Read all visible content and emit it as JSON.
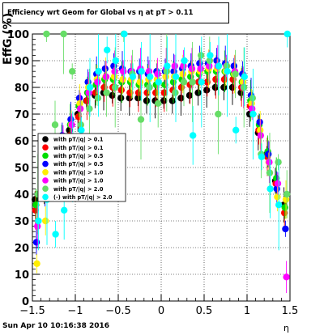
{
  "title": "Efficiency wrt Geom for Global vs   η at pT > 0.11",
  "timestamp": "Sun Apr 10 10:16:38 2016",
  "chart_data": {
    "type": "scatter",
    "title": "Efficiency wrt Geom for Global vs   η at pT > 0.11",
    "xlabel": "η",
    "ylabel": "EffG (%)",
    "xlim": [
      -1.5,
      1.5
    ],
    "ylim": [
      0,
      100
    ],
    "xticks": [
      "−1.5",
      "−1",
      "−0.5",
      "0",
      "0.5",
      "1",
      "1.5"
    ],
    "yticks": [
      "0",
      "10",
      "20",
      "30",
      "40",
      "50",
      "60",
      "70",
      "80",
      "90",
      "100"
    ],
    "grid": true,
    "legend_position": "middle-left",
    "series": [
      {
        "name": "with pT/|q| > 0.1",
        "color": "#000000",
        "x": [
          -1.45,
          -1.35,
          -1.25,
          -1.15,
          -1.05,
          -0.95,
          -0.85,
          -0.75,
          -0.65,
          -0.55,
          -0.45,
          -0.35,
          -0.25,
          -0.15,
          -0.05,
          0.05,
          0.15,
          0.25,
          0.35,
          0.45,
          0.55,
          0.65,
          0.75,
          0.85,
          0.95,
          1.05,
          1.15,
          1.25,
          1.35,
          1.45
        ],
        "y": [
          38,
          45,
          52,
          58,
          64,
          70,
          75,
          77,
          78,
          77,
          76,
          76,
          76,
          75,
          75,
          75,
          75,
          76,
          77,
          78,
          79,
          80,
          80,
          80,
          78,
          70,
          63,
          55,
          45,
          36
        ]
      },
      {
        "name": "with pT/|q| > 0.1",
        "color": "#ff0000",
        "x": [
          -1.45,
          -1.35,
          -1.25,
          -1.15,
          -1.05,
          -0.95,
          -0.85,
          -0.75,
          -0.65,
          -0.55,
          -0.45,
          -0.35,
          -0.25,
          -0.15,
          -0.05,
          0.05,
          0.15,
          0.25,
          0.35,
          0.45,
          0.55,
          0.65,
          0.75,
          0.85,
          0.95,
          1.05,
          1.15,
          1.25,
          1.35,
          1.45
        ],
        "y": [
          34,
          40,
          48,
          56,
          62,
          69,
          75,
          78,
          80,
          80,
          79,
          78,
          78,
          78,
          78,
          78,
          79,
          80,
          81,
          82,
          82,
          83,
          83,
          83,
          80,
          73,
          64,
          54,
          44,
          33
        ]
      },
      {
        "name": "with pT/|q| > 0.5",
        "color": "#00dd00",
        "x": [
          -1.45,
          -1.35,
          -1.25,
          -1.15,
          -1.05,
          -0.95,
          -0.85,
          -0.75,
          -0.65,
          -0.55,
          -0.45,
          -0.35,
          -0.25,
          -0.15,
          -0.05,
          0.05,
          0.15,
          0.25,
          0.35,
          0.45,
          0.55,
          0.65,
          0.75,
          0.85,
          0.95,
          1.05,
          1.15,
          1.25,
          1.35,
          1.45
        ],
        "y": [
          36,
          44,
          52,
          60,
          66,
          73,
          78,
          81,
          83,
          83,
          82,
          82,
          81,
          81,
          81,
          81,
          82,
          83,
          84,
          85,
          86,
          86,
          86,
          85,
          82,
          75,
          66,
          56,
          46,
          35
        ]
      },
      {
        "name": "with pT/|q| > 0.5",
        "color": "#0000ff",
        "x": [
          -1.45,
          -1.35,
          -1.25,
          -1.15,
          -1.05,
          -0.95,
          -0.85,
          -0.75,
          -0.65,
          -0.55,
          -0.45,
          -0.35,
          -0.25,
          -0.15,
          -0.05,
          0.05,
          0.15,
          0.25,
          0.35,
          0.45,
          0.55,
          0.65,
          0.75,
          0.85,
          0.95,
          1.05,
          1.15,
          1.25,
          1.35,
          1.45
        ],
        "y": [
          22,
          42,
          52,
          62,
          68,
          76,
          82,
          85,
          87,
          88,
          87,
          86,
          86,
          85,
          86,
          86,
          86,
          87,
          88,
          89,
          89,
          90,
          89,
          88,
          85,
          77,
          67,
          55,
          42,
          27
        ]
      },
      {
        "name": "with pT/|q| > 1.0",
        "color": "#ffee00",
        "x": [
          -1.45,
          -1.35,
          -1.25,
          -1.15,
          -1.05,
          -0.95,
          -0.85,
          -0.75,
          -0.65,
          -0.55,
          -0.45,
          -0.35,
          -0.25,
          -0.15,
          -0.05,
          0.05,
          0.15,
          0.25,
          0.35,
          0.45,
          0.55,
          0.65,
          0.75,
          0.85,
          0.95,
          1.05,
          1.15,
          1.25,
          1.35,
          1.45
        ],
        "y": [
          14,
          30,
          46,
          58,
          66,
          74,
          80,
          83,
          84,
          84,
          83,
          83,
          82,
          83,
          83,
          84,
          84,
          85,
          86,
          86,
          87,
          87,
          86,
          85,
          82,
          74,
          64,
          52,
          39,
          38
        ]
      },
      {
        "name": "with pT/|q| > 1.0",
        "color": "#ff00ff",
        "x": [
          -1.45,
          -1.35,
          -1.25,
          -1.15,
          -1.05,
          -0.95,
          -0.85,
          -0.75,
          -0.65,
          -0.55,
          -0.45,
          -0.35,
          -0.25,
          -0.15,
          -0.05,
          0.05,
          0.15,
          0.25,
          0.35,
          0.45,
          0.55,
          0.65,
          0.75,
          0.85,
          0.95,
          1.05,
          1.15,
          1.25,
          1.35,
          1.45
        ],
        "y": [
          28,
          42,
          50,
          58,
          66,
          72,
          78,
          82,
          84,
          86,
          86,
          86,
          87,
          86,
          85,
          87,
          88,
          88,
          87,
          87,
          88,
          88,
          88,
          86,
          80,
          72,
          62,
          52,
          44,
          9
        ]
      },
      {
        "name": "with pT/|q| > 2.0",
        "color": "#66dd66",
        "x": [
          -1.45,
          -1.35,
          -1.25,
          -1.15,
          -1.05,
          -0.95,
          -0.85,
          -0.75,
          -0.65,
          -0.55,
          -0.45,
          -0.35,
          -0.25,
          -0.15,
          -0.05,
          0.05,
          0.15,
          0.25,
          0.35,
          0.45,
          0.55,
          0.65,
          0.75,
          0.85,
          0.95,
          1.05,
          1.15,
          1.25,
          1.35,
          1.45
        ],
        "y": [
          40,
          100,
          66,
          100,
          86,
          66,
          72,
          76,
          78,
          80,
          100,
          85,
          68,
          80,
          74,
          86,
          78,
          82,
          82,
          92,
          90,
          70,
          88,
          85,
          80,
          76,
          55,
          48,
          52,
          40
        ]
      },
      {
        "name": "(-) with pT/|q| > 2.0",
        "color": "#00ffff",
        "x": [
          -1.45,
          -1.35,
          -1.25,
          -1.15,
          -1.05,
          -0.95,
          -0.85,
          -0.75,
          -0.65,
          -0.55,
          -0.45,
          -0.35,
          -0.25,
          -0.15,
          -0.05,
          0.05,
          0.15,
          0.25,
          0.35,
          0.45,
          0.55,
          0.65,
          0.75,
          0.85,
          0.95,
          1.05,
          1.15,
          1.25,
          1.35,
          1.45
        ],
        "y": [
          30,
          38,
          25,
          34,
          54,
          64,
          80,
          86,
          94,
          90,
          100,
          84,
          86,
          84,
          82,
          88,
          84,
          90,
          62,
          82,
          92,
          88,
          86,
          64,
          84,
          70,
          54,
          42,
          36,
          100
        ]
      }
    ],
    "legend": [
      {
        "label": "with pT/|q| > 0.1",
        "color": "#000000"
      },
      {
        "label": "with pT/|q| > 0.1",
        "color": "#ff0000"
      },
      {
        "label": "with pT/|q| > 0.5",
        "color": "#00dd00"
      },
      {
        "label": "with pT/|q| > 0.5",
        "color": "#0000ff"
      },
      {
        "label": "with pT/|q| > 1.0",
        "color": "#ffee00"
      },
      {
        "label": "with pT/|q| > 1.0",
        "color": "#ff00ff"
      },
      {
        "label": "with pT/|q| > 2.0",
        "color": "#66dd66"
      },
      {
        "label": "(-) with pT/|q| > 2.0",
        "color": "#00ffff"
      }
    ]
  }
}
